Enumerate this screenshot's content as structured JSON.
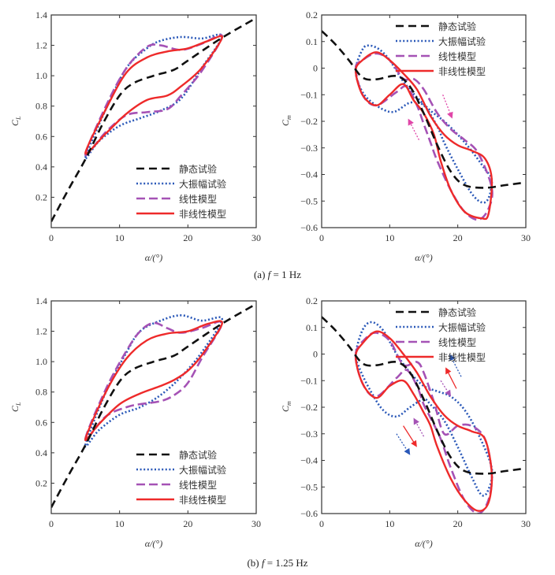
{
  "captions": [
    {
      "prefix": "(a)",
      "var": "f",
      "value": "= 1 Hz"
    },
    {
      "prefix": "(b)",
      "var": "f",
      "value": "= 1.25 Hz"
    }
  ],
  "colors": {
    "static": "#111111",
    "large_amp": "#2a58b8",
    "linear": "#a552b5",
    "nonlinear": "#ee2a2a",
    "arrow_pink": "#e046a8"
  },
  "legend": [
    "静态试验",
    "大振幅试验",
    "线性模型",
    "非线性模型"
  ],
  "chart_data": [
    {
      "id": "a-CL",
      "type": "line",
      "panel": "(a) f = 1 Hz",
      "xlabel": "α/(°)",
      "ylabel_main": "C",
      "ylabel_sub": "L",
      "xlim": [
        0,
        30
      ],
      "ylim": [
        0,
        1.4
      ],
      "xticks": [
        0,
        10,
        20,
        30
      ],
      "yticks": [
        0.2,
        0.4,
        0.6,
        0.8,
        1.0,
        1.2,
        1.4
      ],
      "ytick_labels": [
        "0.2",
        "0.4",
        "0.6",
        "0.8",
        "1.0",
        "1.2",
        "1.4"
      ],
      "legend_position": "bottom-right",
      "grid": false,
      "series": [
        {
          "name": "静态试验",
          "style": "static",
          "closed": false,
          "x": [
            0,
            2.5,
            5,
            7.5,
            10,
            12,
            15,
            18,
            20,
            25,
            30
          ],
          "y": [
            0.04,
            0.25,
            0.45,
            0.68,
            0.87,
            0.95,
            1.0,
            1.04,
            1.1,
            1.25,
            1.38
          ]
        },
        {
          "name": "大振幅试验",
          "style": "large_amp",
          "closed": true,
          "x": [
            5,
            8,
            11,
            14,
            16,
            19,
            22,
            25,
            22,
            19,
            16,
            13,
            10,
            7
          ],
          "y": [
            0.46,
            0.78,
            1.05,
            1.18,
            1.23,
            1.255,
            1.245,
            1.26,
            1.05,
            0.85,
            0.77,
            0.72,
            0.67,
            0.57
          ]
        },
        {
          "name": "线性模型",
          "style": "linear",
          "closed": true,
          "x": [
            5,
            8,
            11,
            14,
            16,
            19,
            22,
            25,
            22,
            19,
            17,
            14,
            11,
            8
          ],
          "y": [
            0.48,
            0.8,
            1.05,
            1.19,
            1.2,
            1.17,
            1.21,
            1.26,
            1.03,
            0.87,
            0.78,
            0.76,
            0.74,
            0.63
          ]
        },
        {
          "name": "非线性模型",
          "style": "nonlinear",
          "closed": true,
          "x": [
            5,
            8,
            11,
            14,
            17,
            20,
            23,
            25,
            22,
            19,
            17,
            14,
            11,
            8
          ],
          "y": [
            0.49,
            0.78,
            1.02,
            1.12,
            1.16,
            1.18,
            1.23,
            1.25,
            1.05,
            0.93,
            0.87,
            0.84,
            0.75,
            0.62
          ]
        }
      ],
      "arrows": []
    },
    {
      "id": "a-Cm",
      "type": "line",
      "panel": "(a) f = 1 Hz",
      "xlabel": "α/(°)",
      "ylabel_main": "C",
      "ylabel_sub": "m",
      "xlim": [
        0,
        30
      ],
      "ylim": [
        -0.6,
        0.2
      ],
      "xticks": [
        0,
        10,
        20,
        30
      ],
      "yticks": [
        -0.6,
        -0.5,
        -0.4,
        -0.3,
        -0.2,
        -0.1,
        0,
        0.1,
        0.2
      ],
      "ytick_labels": [
        "−0.6",
        "−0.5",
        "−0.4",
        "−0.3",
        "−0.2",
        "−0.1",
        "0",
        "0.1",
        "0.2"
      ],
      "legend_position": "top-right",
      "grid": false,
      "series": [
        {
          "name": "静态试验",
          "style": "static",
          "closed": false,
          "x": [
            0,
            2,
            4,
            6,
            8,
            11,
            13,
            15,
            17,
            19,
            21,
            24,
            27,
            30
          ],
          "y": [
            0.14,
            0.09,
            0.03,
            -0.035,
            -0.042,
            -0.03,
            -0.07,
            -0.17,
            -0.29,
            -0.39,
            -0.44,
            -0.45,
            -0.44,
            -0.43
          ]
        },
        {
          "name": "大振幅试验",
          "style": "large_amp",
          "closed": true,
          "x": [
            5,
            6,
            7,
            8.5,
            10,
            12,
            14,
            16,
            18,
            20,
            22,
            24,
            25,
            24.5,
            23.5,
            22,
            20,
            18,
            17,
            15,
            13,
            10.5,
            8,
            6
          ],
          "y": [
            -0.01,
            0.07,
            0.085,
            0.07,
            0.03,
            -0.05,
            -0.11,
            -0.16,
            -0.2,
            -0.25,
            -0.31,
            -0.38,
            -0.42,
            -0.49,
            -0.505,
            -0.47,
            -0.38,
            -0.28,
            -0.22,
            -0.14,
            -0.13,
            -0.165,
            -0.14,
            -0.09
          ]
        },
        {
          "name": "线性模型",
          "style": "linear",
          "closed": true,
          "x": [
            5,
            6,
            8,
            10,
            12,
            13.5,
            15,
            17,
            19,
            21,
            23,
            25,
            24.5,
            23,
            21,
            19,
            17,
            16,
            15,
            14,
            12.5,
            11,
            8,
            6
          ],
          "y": [
            0,
            0.03,
            0.055,
            0.03,
            -0.04,
            -0.04,
            -0.08,
            -0.17,
            -0.23,
            -0.27,
            -0.32,
            -0.45,
            -0.53,
            -0.57,
            -0.54,
            -0.46,
            -0.35,
            -0.28,
            -0.21,
            -0.14,
            -0.07,
            -0.09,
            -0.14,
            -0.1
          ]
        },
        {
          "name": "非线性模型",
          "style": "nonlinear",
          "closed": true,
          "x": [
            5,
            6,
            8,
            10,
            12,
            14,
            16,
            18,
            20,
            22,
            24,
            25,
            24.5,
            23.5,
            21,
            19,
            17.5,
            16.5,
            15,
            13.5,
            12,
            10,
            8,
            6
          ],
          "y": [
            -0.01,
            0.03,
            0.06,
            0.03,
            -0.02,
            -0.08,
            -0.18,
            -0.25,
            -0.29,
            -0.31,
            -0.34,
            -0.42,
            -0.55,
            -0.565,
            -0.54,
            -0.46,
            -0.35,
            -0.25,
            -0.17,
            -0.12,
            -0.06,
            -0.1,
            -0.14,
            -0.1
          ]
        }
      ],
      "arrows": [
        {
          "style": "arrow_pink",
          "from": [
            17.8,
            -0.1
          ],
          "to": [
            19.2,
            -0.19
          ],
          "dotted": true
        },
        {
          "style": "arrow_pink",
          "from": [
            14.3,
            -0.27
          ],
          "to": [
            12.7,
            -0.19
          ],
          "dotted": true
        }
      ]
    },
    {
      "id": "b-CL",
      "type": "line",
      "panel": "(b) f = 1.25 Hz",
      "xlabel": "α/(°)",
      "ylabel_main": "C",
      "ylabel_sub": "L",
      "xlim": [
        0,
        30
      ],
      "ylim": [
        0,
        1.4
      ],
      "xticks": [
        0,
        10,
        20,
        30
      ],
      "yticks": [
        0.2,
        0.4,
        0.6,
        0.8,
        1.0,
        1.2,
        1.4
      ],
      "ytick_labels": [
        "0.2",
        "0.4",
        "0.6",
        "0.8",
        "1.0",
        "1.2",
        "1.4"
      ],
      "legend_position": "bottom-right",
      "grid": false,
      "series": [
        {
          "name": "静态试验",
          "style": "static",
          "closed": false,
          "x": [
            0,
            2.5,
            5,
            7.5,
            10,
            12,
            15,
            18,
            20,
            25,
            30
          ],
          "y": [
            0.04,
            0.25,
            0.45,
            0.68,
            0.87,
            0.95,
            1.0,
            1.04,
            1.1,
            1.25,
            1.38
          ]
        },
        {
          "name": "大振幅试验",
          "style": "large_amp",
          "closed": true,
          "x": [
            5,
            8,
            11,
            13,
            16,
            19,
            22,
            25,
            22,
            19,
            16,
            13,
            10,
            7
          ],
          "y": [
            0.45,
            0.8,
            1.06,
            1.2,
            1.27,
            1.305,
            1.27,
            1.28,
            1.06,
            0.9,
            0.78,
            0.7,
            0.65,
            0.55
          ]
        },
        {
          "name": "线性模型",
          "style": "linear",
          "closed": true,
          "x": [
            5,
            8,
            11,
            13,
            15,
            17,
            19,
            22,
            25,
            22,
            20,
            18,
            16,
            13,
            11,
            8
          ],
          "y": [
            0.49,
            0.82,
            1.07,
            1.2,
            1.255,
            1.22,
            1.19,
            1.22,
            1.255,
            1.02,
            0.86,
            0.78,
            0.74,
            0.72,
            0.7,
            0.64
          ]
        },
        {
          "name": "非线性模型",
          "style": "nonlinear",
          "closed": true,
          "x": [
            5,
            8,
            11,
            14,
            17,
            20,
            23,
            25,
            22,
            20,
            18,
            16,
            13,
            10,
            7
          ],
          "y": [
            0.49,
            0.8,
            1.02,
            1.14,
            1.185,
            1.2,
            1.25,
            1.25,
            1.04,
            0.94,
            0.88,
            0.84,
            0.79,
            0.72,
            0.59
          ]
        }
      ],
      "arrows": []
    },
    {
      "id": "b-Cm",
      "type": "line",
      "panel": "(b) f = 1.25 Hz",
      "xlabel": "α/(°)",
      "ylabel_main": "C",
      "ylabel_sub": "m",
      "xlim": [
        0,
        30
      ],
      "ylim": [
        -0.6,
        0.2
      ],
      "xticks": [
        0,
        10,
        20,
        30
      ],
      "yticks": [
        -0.6,
        -0.5,
        -0.4,
        -0.3,
        -0.2,
        -0.1,
        0,
        0.1,
        0.2
      ],
      "ytick_labels": [
        "−0.6",
        "−0.5",
        "−0.4",
        "−0.3",
        "−0.2",
        "−0.1",
        "0",
        "0.1",
        "0.2"
      ],
      "legend_position": "top-right",
      "grid": false,
      "series": [
        {
          "name": "静态试验",
          "style": "static",
          "closed": false,
          "x": [
            0,
            2,
            4,
            6,
            8,
            11,
            13,
            15,
            17,
            19,
            21,
            24,
            27,
            30
          ],
          "y": [
            0.14,
            0.09,
            0.03,
            -0.035,
            -0.042,
            -0.03,
            -0.07,
            -0.17,
            -0.29,
            -0.39,
            -0.44,
            -0.45,
            -0.44,
            -0.43
          ]
        },
        {
          "name": "大振幅试验",
          "style": "large_amp",
          "closed": true,
          "x": [
            5,
            6,
            7.3,
            9,
            11,
            13,
            15,
            17,
            19,
            21,
            23,
            25,
            24.5,
            23.5,
            22,
            20,
            18,
            16,
            15,
            13,
            11,
            9,
            7,
            5.5
          ],
          "y": [
            0,
            0.09,
            0.12,
            0.09,
            0,
            -0.07,
            -0.12,
            -0.14,
            -0.16,
            -0.21,
            -0.3,
            -0.43,
            -0.51,
            -0.53,
            -0.46,
            -0.35,
            -0.25,
            -0.19,
            -0.17,
            -0.2,
            -0.235,
            -0.21,
            -0.13,
            -0.05
          ]
        },
        {
          "name": "线性模型",
          "style": "linear",
          "closed": true,
          "x": [
            5,
            6.5,
            8,
            10,
            12,
            14,
            15,
            16.5,
            18,
            20,
            22,
            24,
            25,
            24.5,
            23,
            21,
            19,
            17.5,
            16,
            15,
            14,
            12.5,
            11,
            8,
            6
          ],
          "y": [
            0,
            0.06,
            0.08,
            0.05,
            -0.04,
            -0.03,
            -0.07,
            -0.18,
            -0.3,
            -0.27,
            -0.27,
            -0.32,
            -0.45,
            -0.55,
            -0.6,
            -0.55,
            -0.43,
            -0.32,
            -0.24,
            -0.19,
            -0.12,
            -0.06,
            -0.09,
            -0.16,
            -0.11
          ]
        },
        {
          "name": "非线性模型",
          "style": "nonlinear",
          "closed": true,
          "x": [
            5,
            6,
            8,
            10,
            12,
            14,
            16,
            18,
            20,
            22,
            24,
            25,
            24.5,
            23,
            21,
            19,
            17,
            16,
            15,
            13.5,
            12,
            10,
            8,
            6
          ],
          "y": [
            -0.01,
            0.04,
            0.085,
            0.06,
            0,
            -0.07,
            -0.16,
            -0.23,
            -0.27,
            -0.29,
            -0.32,
            -0.45,
            -0.56,
            -0.59,
            -0.55,
            -0.47,
            -0.35,
            -0.27,
            -0.22,
            -0.15,
            -0.1,
            -0.12,
            -0.165,
            -0.11
          ]
        }
      ],
      "arrows": [
        {
          "style": "large_amp",
          "from": [
            20.5,
            -0.085
          ],
          "to": [
            18.8,
            0.0
          ],
          "dotted": true
        },
        {
          "style": "nonlinear",
          "from": [
            19.8,
            -0.13
          ],
          "to": [
            18.2,
            -0.05
          ],
          "dotted": false
        },
        {
          "style": "linear",
          "from": [
            17.5,
            -0.1
          ],
          "to": [
            19,
            -0.16
          ],
          "dotted": true
        },
        {
          "style": "nonlinear",
          "from": [
            12,
            -0.27
          ],
          "to": [
            14,
            -0.35
          ],
          "dotted": false
        },
        {
          "style": "large_amp",
          "from": [
            11,
            -0.3
          ],
          "to": [
            13,
            -0.38
          ],
          "dotted": true
        },
        {
          "style": "linear",
          "from": [
            15,
            -0.31
          ],
          "to": [
            13.5,
            -0.24
          ],
          "dotted": true
        }
      ]
    }
  ]
}
